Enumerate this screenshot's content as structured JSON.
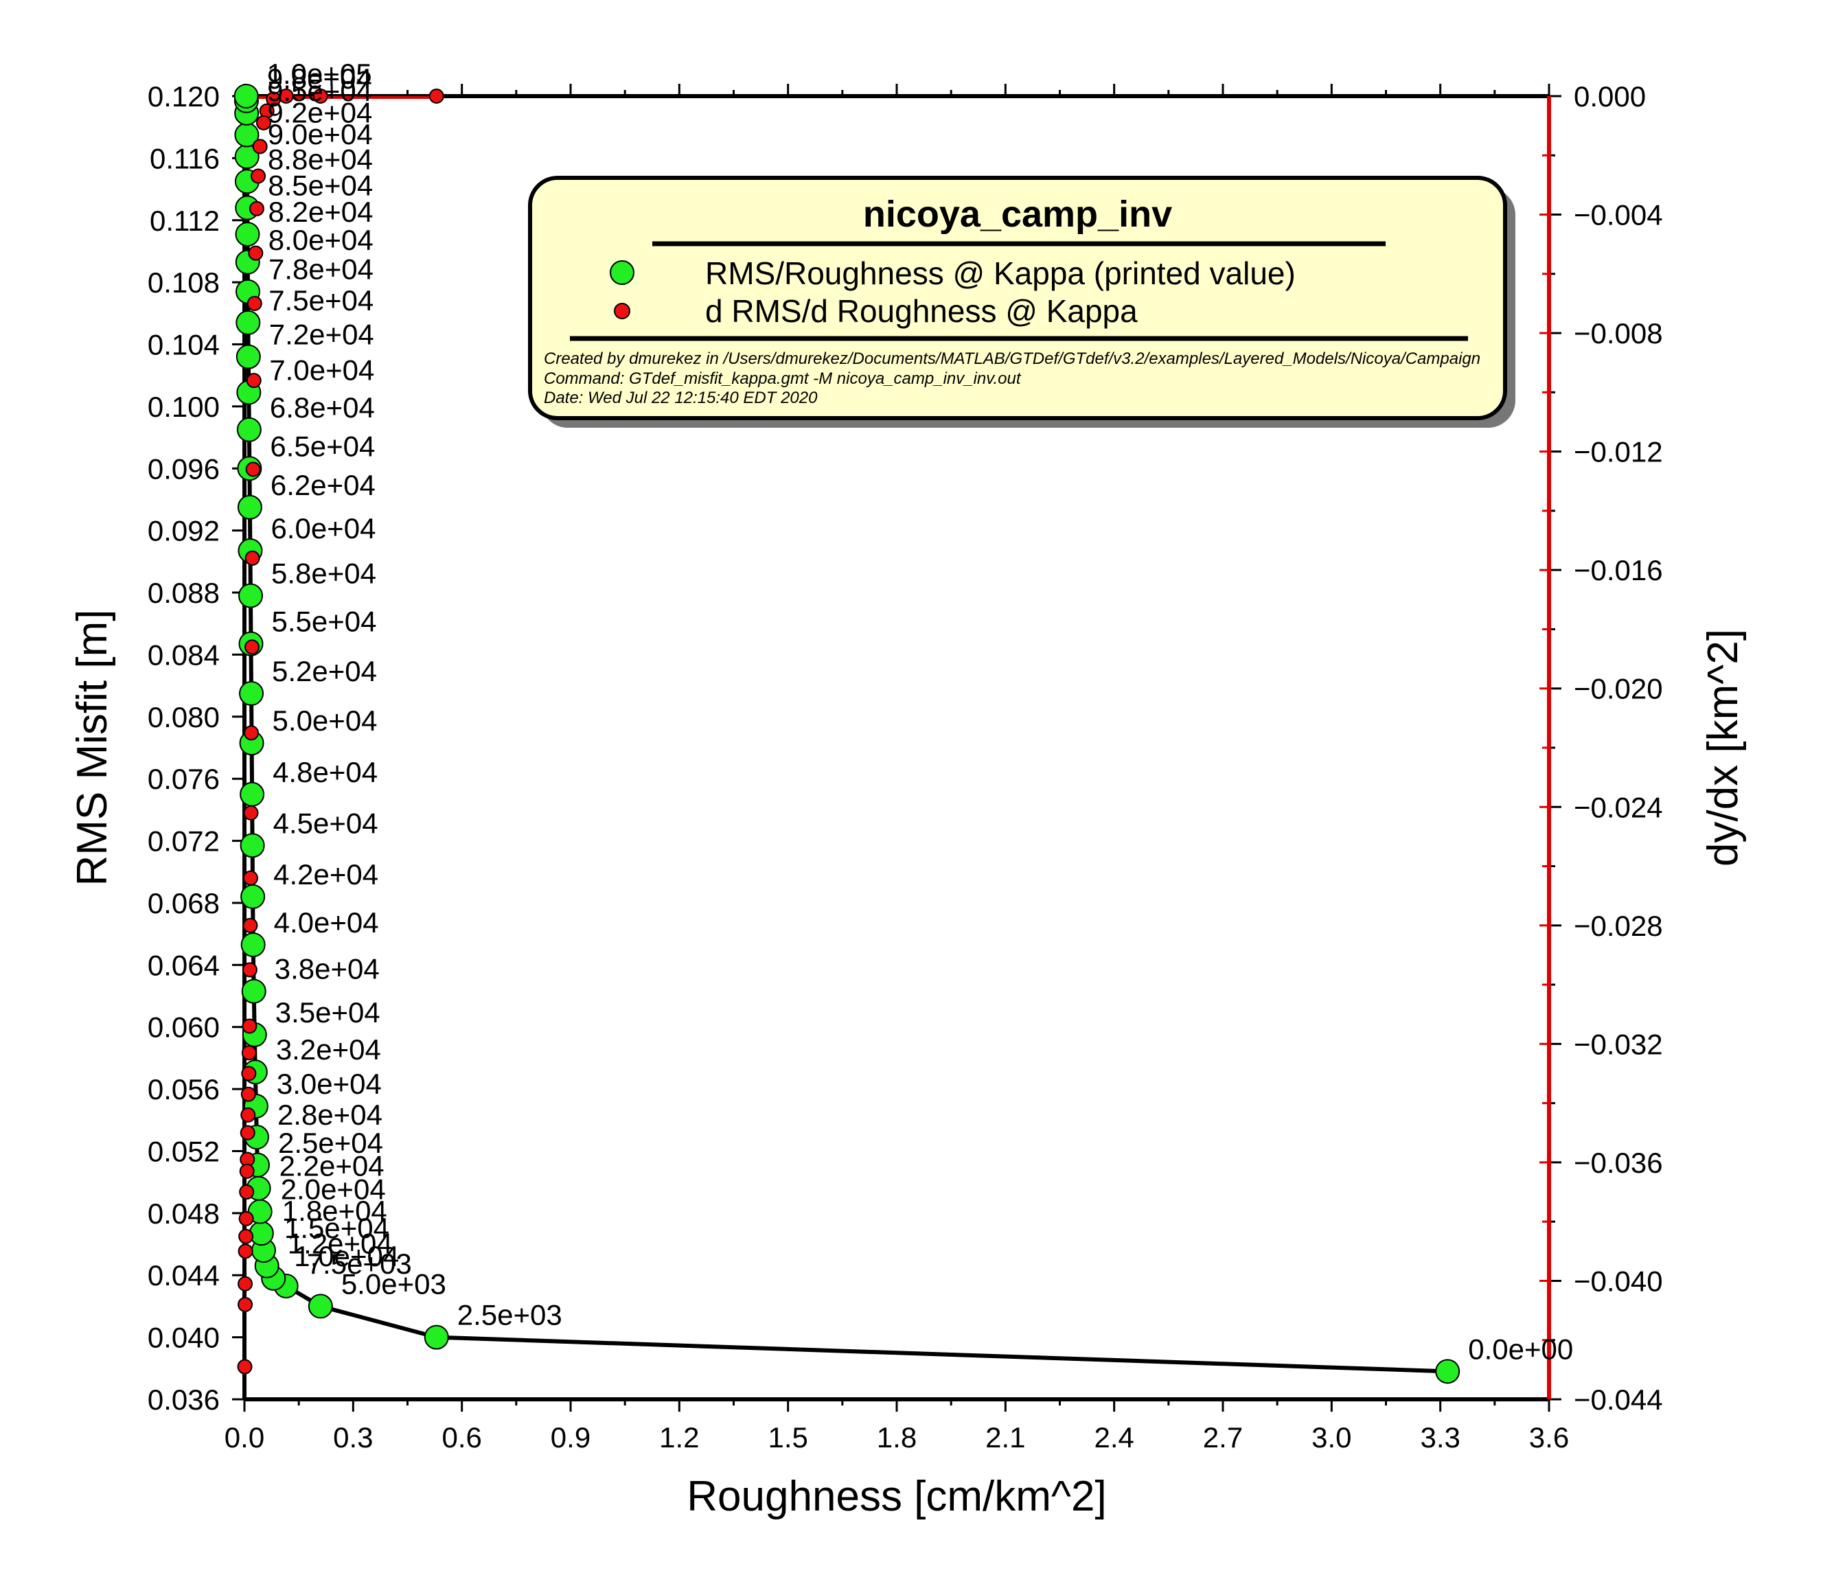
{
  "chart_data": {
    "type": "scatter",
    "xlabel": "Roughness [cm/km^2]",
    "ylabel": "RMS Misfit [m]",
    "y2label": "dy/dx [km^2]",
    "xlim": [
      0,
      3.6
    ],
    "ylim": [
      0.036,
      0.12
    ],
    "y2lim": [
      -0.044,
      0.0
    ],
    "x_ticks": [
      "0.0",
      "0.3",
      "0.6",
      "0.9",
      "1.2",
      "1.5",
      "1.8",
      "2.1",
      "2.4",
      "2.7",
      "3.0",
      "3.3",
      "3.6"
    ],
    "y_ticks": [
      "0.036",
      "0.040",
      "0.044",
      "0.048",
      "0.052",
      "0.056",
      "0.060",
      "0.064",
      "0.068",
      "0.072",
      "0.076",
      "0.080",
      "0.084",
      "0.088",
      "0.092",
      "0.096",
      "0.100",
      "0.104",
      "0.108",
      "0.112",
      "0.116",
      "0.120"
    ],
    "y2_ticks": [
      "−0.044",
      "−0.040",
      "−0.036",
      "−0.032",
      "−0.028",
      "−0.024",
      "−0.020",
      "−0.016",
      "−0.012",
      "−0.008",
      "−0.004",
      "0.000"
    ],
    "grid": false,
    "legend": {
      "title": "nicoya_camp_inv",
      "entries": [
        "RMS/Roughness @ Kappa (printed value)",
        "d RMS/d Roughness @ Kappa"
      ],
      "notes": [
        "Created by dmurekez in /Users/dmurekez/Documents/MATLAB/GTDef/GTdef/v3.2/examples/Layered_Models/Nicoya/Campaign",
        "Command: GTdef_misfit_kappa.gmt -M nicoya_camp_inv_inv.out",
        "Date: Wed Jul 22 12:15:40 EDT 2020"
      ],
      "placement": "top-right"
    },
    "colors": {
      "curve": "#000000",
      "rms_marker": "#22ee22",
      "derivative_marker": "#ee1111",
      "derivative_axis": "#dd0000",
      "legend_bg": "#ffffcc"
    },
    "series": [
      {
        "name": "RMS/Roughness @ Kappa (printed value)",
        "points": [
          {
            "x": 3.32,
            "y": 0.0378,
            "label": "0.0e+00"
          },
          {
            "x": 0.53,
            "y": 0.04,
            "label": "2.5e+03"
          },
          {
            "x": 0.21,
            "y": 0.042,
            "label": "5.0e+03"
          },
          {
            "x": 0.115,
            "y": 0.0433,
            "label": "7.5e+03"
          },
          {
            "x": 0.08,
            "y": 0.0438,
            "label": "1.0e+04"
          },
          {
            "x": 0.062,
            "y": 0.0446,
            "label": "1.2e+04"
          },
          {
            "x": 0.053,
            "y": 0.0456,
            "label": "1.5e+04"
          },
          {
            "x": 0.047,
            "y": 0.0467,
            "label": "1.8e+04"
          },
          {
            "x": 0.043,
            "y": 0.0481,
            "label": "2.0e+04"
          },
          {
            "x": 0.039,
            "y": 0.0496,
            "label": "2.2e+04"
          },
          {
            "x": 0.036,
            "y": 0.0511,
            "label": "2.5e+04"
          },
          {
            "x": 0.034,
            "y": 0.0529,
            "label": "2.8e+04"
          },
          {
            "x": 0.032,
            "y": 0.0549,
            "label": "3.0e+04"
          },
          {
            "x": 0.03,
            "y": 0.0571,
            "label": "3.2e+04"
          },
          {
            "x": 0.028,
            "y": 0.0595,
            "label": "3.5e+04"
          },
          {
            "x": 0.026,
            "y": 0.0623,
            "label": "3.8e+04"
          },
          {
            "x": 0.024,
            "y": 0.0653,
            "label": "4.0e+04"
          },
          {
            "x": 0.023,
            "y": 0.0684,
            "label": "4.2e+04"
          },
          {
            "x": 0.022,
            "y": 0.0717,
            "label": "4.5e+04"
          },
          {
            "x": 0.021,
            "y": 0.075,
            "label": "4.8e+04"
          },
          {
            "x": 0.02,
            "y": 0.0783,
            "label": "5.0e+04"
          },
          {
            "x": 0.019,
            "y": 0.0815,
            "label": "5.2e+04"
          },
          {
            "x": 0.018,
            "y": 0.0847,
            "label": "5.5e+04"
          },
          {
            "x": 0.017,
            "y": 0.0878,
            "label": "5.8e+04"
          },
          {
            "x": 0.016,
            "y": 0.0907,
            "label": "6.0e+04"
          },
          {
            "x": 0.015,
            "y": 0.0935,
            "label": "6.2e+04"
          },
          {
            "x": 0.014,
            "y": 0.096,
            "label": "6.5e+04"
          },
          {
            "x": 0.013,
            "y": 0.0985,
            "label": "6.8e+04"
          },
          {
            "x": 0.012,
            "y": 0.1009,
            "label": "7.0e+04"
          },
          {
            "x": 0.011,
            "y": 0.1032,
            "label": "7.2e+04"
          },
          {
            "x": 0.01,
            "y": 0.1054,
            "label": "7.5e+04"
          },
          {
            "x": 0.0095,
            "y": 0.1074,
            "label": "7.8e+04"
          },
          {
            "x": 0.009,
            "y": 0.1093,
            "label": "8.0e+04"
          },
          {
            "x": 0.0085,
            "y": 0.1111,
            "label": "8.2e+04"
          },
          {
            "x": 0.008,
            "y": 0.1128,
            "label": "8.5e+04"
          },
          {
            "x": 0.0075,
            "y": 0.1145,
            "label": "8.8e+04"
          },
          {
            "x": 0.007,
            "y": 0.1161,
            "label": "9.0e+04"
          },
          {
            "x": 0.0065,
            "y": 0.1175,
            "label": "9.2e+04"
          },
          {
            "x": 0.006,
            "y": 0.1189,
            "label": "9.5e+04"
          },
          {
            "x": 0.0055,
            "y": 0.1197,
            "label": "9.8e+04"
          },
          {
            "x": 0.005,
            "y": 0.12,
            "label": "1.0e+05"
          }
        ]
      },
      {
        "name": "d RMS/d Roughness @ Kappa",
        "axis": "right",
        "points": [
          {
            "x": 0.53,
            "y": 0.0
          },
          {
            "x": 0.21,
            "y": 0.0
          },
          {
            "x": 0.115,
            "y": 0.0
          },
          {
            "x": 0.08,
            "y": -0.0001
          },
          {
            "x": 0.062,
            "y": -0.0005
          },
          {
            "x": 0.053,
            "y": -0.0009
          },
          {
            "x": 0.043,
            "y": -0.0017
          },
          {
            "x": 0.038,
            "y": -0.0027
          },
          {
            "x": 0.034,
            "y": -0.0038
          },
          {
            "x": 0.031,
            "y": -0.0053
          },
          {
            "x": 0.028,
            "y": -0.007
          },
          {
            "x": 0.026,
            "y": -0.0096
          },
          {
            "x": 0.024,
            "y": -0.0126
          },
          {
            "x": 0.022,
            "y": -0.0156
          },
          {
            "x": 0.021,
            "y": -0.0186
          },
          {
            "x": 0.019,
            "y": -0.0215
          },
          {
            "x": 0.018,
            "y": -0.0242
          },
          {
            "x": 0.017,
            "y": -0.0264
          },
          {
            "x": 0.016,
            "y": -0.028
          },
          {
            "x": 0.015,
            "y": -0.0295
          },
          {
            "x": 0.014,
            "y": -0.0314
          },
          {
            "x": 0.013,
            "y": -0.0323
          },
          {
            "x": 0.012,
            "y": -0.033
          },
          {
            "x": 0.011,
            "y": -0.0337
          },
          {
            "x": 0.01,
            "y": -0.0344
          },
          {
            "x": 0.009,
            "y": -0.035
          },
          {
            "x": 0.008,
            "y": -0.0359
          },
          {
            "x": 0.007,
            "y": -0.0363
          },
          {
            "x": 0.006,
            "y": -0.037
          },
          {
            "x": 0.005,
            "y": -0.0379
          },
          {
            "x": 0.004,
            "y": -0.0385
          },
          {
            "x": 0.003,
            "y": -0.039
          },
          {
            "x": 0.002,
            "y": -0.0401
          },
          {
            "x": 0.002,
            "y": -0.0408
          },
          {
            "x": 0.001,
            "y": -0.0429
          }
        ]
      }
    ]
  }
}
